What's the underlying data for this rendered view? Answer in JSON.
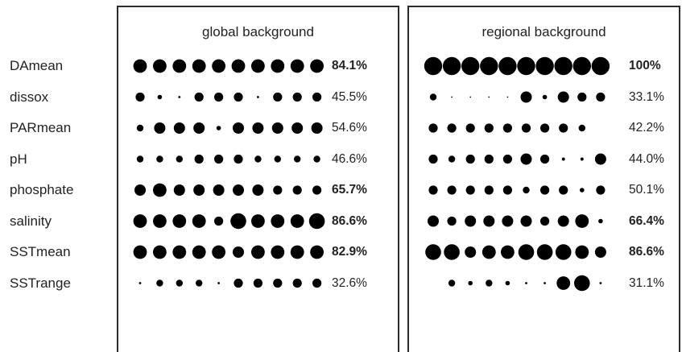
{
  "chart_data": {
    "type": "dot-matrix",
    "panels": [
      {
        "title": "global background"
      },
      {
        "title": "regional background"
      }
    ],
    "rows": [
      {
        "label": "DAmean",
        "global": {
          "pct": "84.1%",
          "bold": true,
          "sizes": [
            3,
            3,
            3,
            3,
            3,
            3,
            3,
            3,
            3,
            3
          ]
        },
        "regional": {
          "pct": "100%",
          "bold": true,
          "sizes": [
            4,
            4,
            4,
            4,
            4,
            4,
            4,
            4,
            4,
            4
          ]
        }
      },
      {
        "label": "dissox",
        "global": {
          "pct": "45.5%",
          "bold": false,
          "sizes": [
            2,
            1,
            0.5,
            2,
            2,
            2,
            0.5,
            2,
            2,
            2
          ]
        },
        "regional": {
          "pct": "33.1%",
          "bold": false,
          "sizes": [
            1.5,
            0.3,
            0.3,
            0.3,
            0.3,
            2.5,
            1,
            2.5,
            2,
            2
          ]
        }
      },
      {
        "label": "PARmean",
        "global": {
          "pct": "54.6%",
          "bold": false,
          "sizes": [
            1.5,
            2.5,
            2.5,
            2.5,
            1,
            2.5,
            2.5,
            2.5,
            2.5,
            2.5
          ]
        },
        "regional": {
          "pct": "42.2%",
          "bold": false,
          "sizes": [
            2,
            2,
            2,
            2,
            2,
            2,
            2,
            2,
            1.5,
            0
          ]
        }
      },
      {
        "label": "pH",
        "global": {
          "pct": "46.6%",
          "bold": false,
          "sizes": [
            1.5,
            1.5,
            1.5,
            2,
            2,
            2,
            1.5,
            1.5,
            1.5,
            1.5
          ]
        },
        "regional": {
          "pct": "44.0%",
          "bold": false,
          "sizes": [
            2,
            1.5,
            2,
            2,
            2,
            2.5,
            2,
            0.7,
            0.7,
            2.5
          ]
        }
      },
      {
        "label": "phosphate",
        "global": {
          "pct": "65.7%",
          "bold": true,
          "sizes": [
            2.5,
            3,
            2.5,
            2.5,
            2.5,
            2.5,
            2.5,
            2,
            2,
            2
          ]
        },
        "regional": {
          "pct": "50.1%",
          "bold": false,
          "sizes": [
            2,
            2,
            2,
            2,
            2,
            1.5,
            2,
            2,
            1,
            2
          ]
        }
      },
      {
        "label": "salinity",
        "global": {
          "pct": "86.6%",
          "bold": true,
          "sizes": [
            3,
            3,
            3,
            3,
            2,
            3.5,
            3,
            3,
            3,
            3.5
          ]
        },
        "regional": {
          "pct": "66.4%",
          "bold": true,
          "sizes": [
            2.5,
            2,
            2.5,
            2.5,
            2.5,
            2.5,
            2,
            2.5,
            3,
            1
          ]
        }
      },
      {
        "label": "SSTmean",
        "global": {
          "pct": "82.9%",
          "bold": true,
          "sizes": [
            3,
            3,
            3,
            3,
            3,
            2.5,
            3,
            3,
            3,
            3
          ]
        },
        "regional": {
          "pct": "86.6%",
          "bold": true,
          "sizes": [
            3.5,
            3.5,
            2.5,
            3,
            3,
            3.5,
            3.5,
            3.5,
            3,
            2.5
          ]
        }
      },
      {
        "label": "SSTrange",
        "global": {
          "pct": "32.6%",
          "bold": false,
          "sizes": [
            0.5,
            1.5,
            1.5,
            1.5,
            0.5,
            2,
            2,
            2,
            2,
            2
          ]
        },
        "regional": {
          "pct": "31.1%",
          "bold": false,
          "sizes": [
            0,
            1.5,
            1,
            1.5,
            1,
            0.5,
            0.5,
            3,
            3.5,
            0.5
          ]
        }
      }
    ]
  }
}
